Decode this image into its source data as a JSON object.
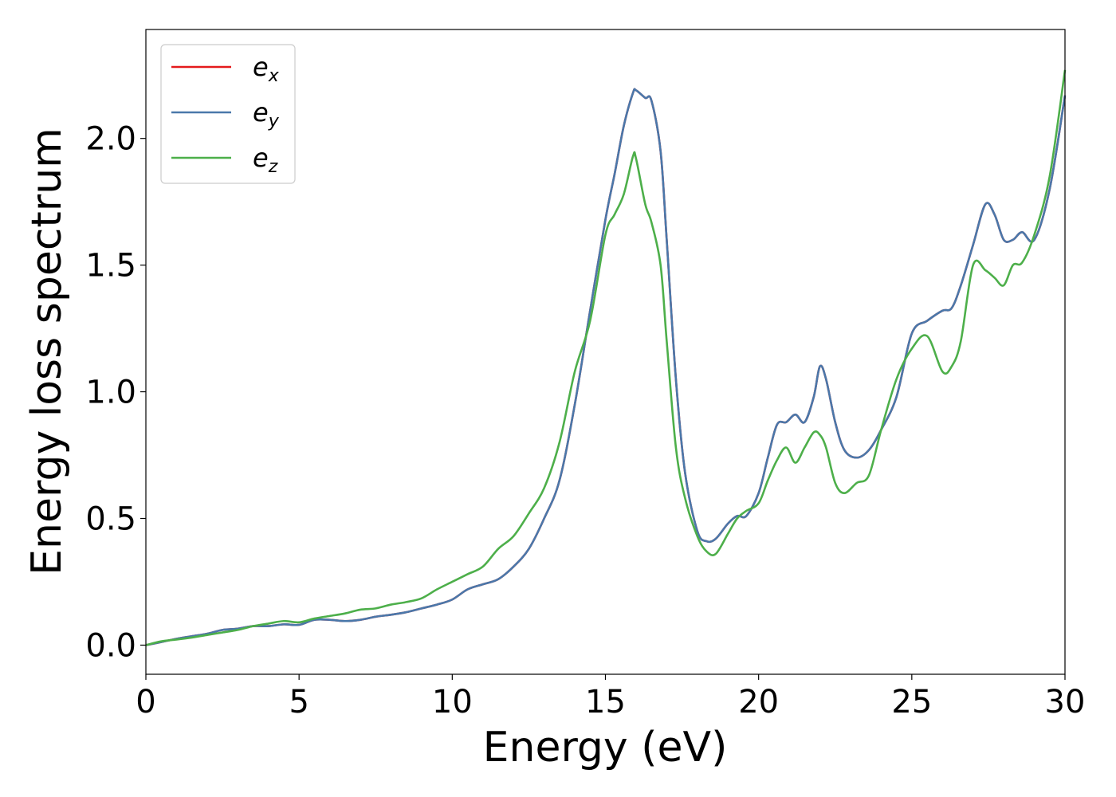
{
  "chart_data": {
    "type": "line",
    "title": "",
    "xlabel": "Energy (eV)",
    "ylabel": "Energy loss spectrum",
    "xlim": [
      0,
      30
    ],
    "ylim": [
      -0.115,
      2.43
    ],
    "xticks": [
      0,
      5,
      10,
      15,
      20,
      25,
      30
    ],
    "xtick_labels": [
      "0",
      "5",
      "10",
      "15",
      "20",
      "25",
      "30"
    ],
    "yticks": [
      0.0,
      0.5,
      1.0,
      1.5,
      2.0
    ],
    "ytick_labels": [
      "0.0",
      "0.5",
      "1.0",
      "1.5",
      "2.0"
    ],
    "grid": false,
    "legend_position": "top-left",
    "series": [
      {
        "name": "e",
        "subscript": "x",
        "color": "#e41a1c",
        "x": [
          0,
          0.5,
          1,
          1.5,
          2,
          2.5,
          3,
          3.5,
          4,
          4.5,
          5,
          5.5,
          6,
          6.5,
          7,
          7.5,
          8,
          8.5,
          9,
          9.5,
          10,
          10.5,
          11,
          11.5,
          12,
          12.5,
          13,
          13.5,
          14,
          14.5,
          15,
          15.3,
          15.6,
          15.9,
          16,
          16.3,
          16.5,
          16.8,
          17,
          17.3,
          17.6,
          18,
          18.3,
          18.6,
          19,
          19.3,
          19.6,
          20,
          20.3,
          20.6,
          20.9,
          21.2,
          21.5,
          21.8,
          22,
          22.2,
          22.5,
          22.8,
          23.2,
          23.6,
          24,
          24.5,
          25,
          25.5,
          26,
          26.3,
          26.6,
          27,
          27.4,
          27.7,
          28,
          28.3,
          28.6,
          29,
          29.5,
          30
        ],
        "y": [
          0,
          0.012,
          0.025,
          0.035,
          0.045,
          0.06,
          0.065,
          0.075,
          0.075,
          0.082,
          0.08,
          0.1,
          0.1,
          0.095,
          0.1,
          0.112,
          0.12,
          0.13,
          0.145,
          0.16,
          0.18,
          0.22,
          0.24,
          0.26,
          0.31,
          0.38,
          0.5,
          0.65,
          0.95,
          1.32,
          1.68,
          1.86,
          2.05,
          2.18,
          2.19,
          2.16,
          2.15,
          1.95,
          1.6,
          1.05,
          0.68,
          0.45,
          0.41,
          0.42,
          0.48,
          0.51,
          0.51,
          0.6,
          0.74,
          0.87,
          0.88,
          0.91,
          0.88,
          0.98,
          1.1,
          1.05,
          0.88,
          0.77,
          0.74,
          0.77,
          0.85,
          0.98,
          1.23,
          1.28,
          1.32,
          1.33,
          1.42,
          1.58,
          1.74,
          1.7,
          1.6,
          1.6,
          1.63,
          1.6,
          1.8,
          2.17
        ]
      },
      {
        "name": "e",
        "subscript": "y",
        "color": "#4a78aa",
        "x": [
          0,
          0.5,
          1,
          1.5,
          2,
          2.5,
          3,
          3.5,
          4,
          4.5,
          5,
          5.5,
          6,
          6.5,
          7,
          7.5,
          8,
          8.5,
          9,
          9.5,
          10,
          10.5,
          11,
          11.5,
          12,
          12.5,
          13,
          13.5,
          14,
          14.5,
          15,
          15.3,
          15.6,
          15.9,
          16,
          16.3,
          16.5,
          16.8,
          17,
          17.3,
          17.6,
          18,
          18.3,
          18.6,
          19,
          19.3,
          19.6,
          20,
          20.3,
          20.6,
          20.9,
          21.2,
          21.5,
          21.8,
          22,
          22.2,
          22.5,
          22.8,
          23.2,
          23.6,
          24,
          24.5,
          25,
          25.5,
          26,
          26.3,
          26.6,
          27,
          27.4,
          27.7,
          28,
          28.3,
          28.6,
          29,
          29.5,
          30
        ],
        "y": [
          0,
          0.012,
          0.025,
          0.035,
          0.045,
          0.06,
          0.065,
          0.075,
          0.075,
          0.082,
          0.08,
          0.1,
          0.1,
          0.095,
          0.1,
          0.112,
          0.12,
          0.13,
          0.145,
          0.16,
          0.18,
          0.22,
          0.24,
          0.26,
          0.31,
          0.38,
          0.5,
          0.65,
          0.95,
          1.32,
          1.68,
          1.86,
          2.05,
          2.18,
          2.19,
          2.16,
          2.15,
          1.95,
          1.6,
          1.05,
          0.68,
          0.45,
          0.41,
          0.42,
          0.48,
          0.51,
          0.51,
          0.6,
          0.74,
          0.87,
          0.88,
          0.91,
          0.88,
          0.98,
          1.1,
          1.05,
          0.88,
          0.77,
          0.74,
          0.77,
          0.85,
          0.98,
          1.23,
          1.28,
          1.32,
          1.33,
          1.42,
          1.58,
          1.74,
          1.7,
          1.6,
          1.6,
          1.63,
          1.6,
          1.8,
          2.17
        ]
      },
      {
        "name": "e",
        "subscript": "z",
        "color": "#4daf4a",
        "x": [
          0,
          0.5,
          1,
          1.5,
          2,
          2.5,
          3,
          3.5,
          4,
          4.5,
          5,
          5.5,
          6,
          6.5,
          7,
          7.5,
          8,
          8.5,
          9,
          9.5,
          10,
          10.5,
          11,
          11.5,
          12,
          12.5,
          13,
          13.5,
          14,
          14.5,
          15,
          15.3,
          15.6,
          15.9,
          16,
          16.3,
          16.5,
          16.8,
          17,
          17.3,
          17.6,
          18,
          18.3,
          18.6,
          19,
          19.3,
          19.6,
          20,
          20.3,
          20.6,
          20.9,
          21.2,
          21.5,
          21.8,
          22,
          22.2,
          22.5,
          22.8,
          23.2,
          23.6,
          24,
          24.5,
          25,
          25.5,
          26,
          26.3,
          26.6,
          27,
          27.4,
          27.7,
          28,
          28.3,
          28.6,
          29,
          29.5,
          30
        ],
        "y": [
          0,
          0.015,
          0.022,
          0.03,
          0.04,
          0.05,
          0.06,
          0.075,
          0.085,
          0.095,
          0.09,
          0.105,
          0.115,
          0.125,
          0.14,
          0.145,
          0.16,
          0.17,
          0.185,
          0.22,
          0.25,
          0.28,
          0.31,
          0.38,
          0.43,
          0.52,
          0.62,
          0.8,
          1.08,
          1.28,
          1.62,
          1.7,
          1.78,
          1.93,
          1.92,
          1.74,
          1.67,
          1.5,
          1.2,
          0.78,
          0.58,
          0.43,
          0.37,
          0.36,
          0.44,
          0.5,
          0.53,
          0.56,
          0.65,
          0.73,
          0.78,
          0.72,
          0.78,
          0.84,
          0.83,
          0.78,
          0.64,
          0.6,
          0.64,
          0.67,
          0.85,
          1.05,
          1.17,
          1.22,
          1.08,
          1.1,
          1.2,
          1.5,
          1.48,
          1.45,
          1.42,
          1.5,
          1.51,
          1.62,
          1.85,
          2.27
        ]
      }
    ]
  }
}
